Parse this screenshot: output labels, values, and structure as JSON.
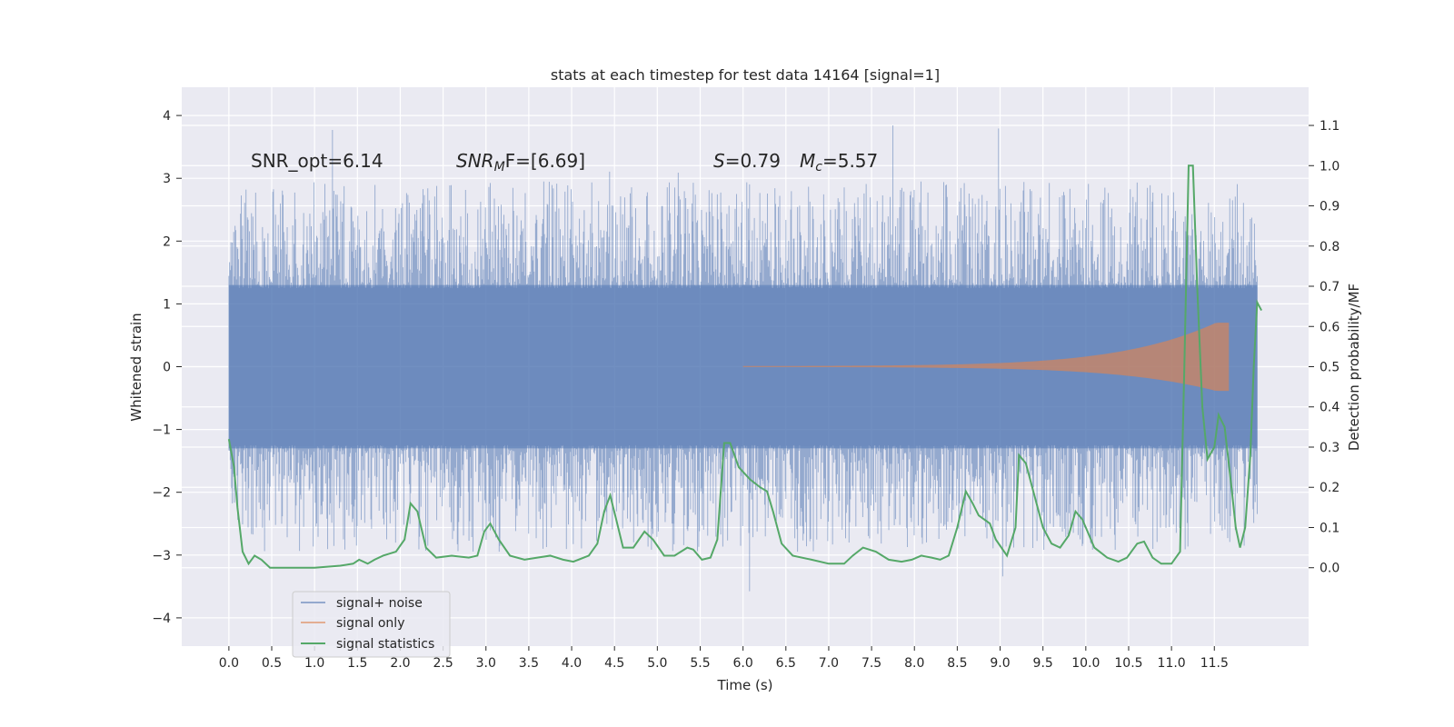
{
  "chart_data": {
    "type": "line",
    "title": "stats at each timestep for test data 14164 [signal=1]",
    "xlabel": "Time (s)",
    "ylabel": "Whitened strain",
    "y2label": "Detection probability/MF",
    "xlim": [
      -0.55,
      12.6
    ],
    "ylim": [
      -4.45,
      4.45
    ],
    "y2lim": [
      -0.195,
      1.195
    ],
    "xticks": [
      0.0,
      0.5,
      1.0,
      1.5,
      2.0,
      2.5,
      3.0,
      3.5,
      4.0,
      4.5,
      5.0,
      5.5,
      6.0,
      6.5,
      7.0,
      7.5,
      8.0,
      8.5,
      9.0,
      9.5,
      10.0,
      10.5,
      11.0,
      11.5
    ],
    "xtick_labels": [
      "0.0",
      "0.5",
      "1.0",
      "1.5",
      "2.0",
      "2.5",
      "3.0",
      "3.5",
      "4.0",
      "4.5",
      "5.0",
      "5.5",
      "6.0",
      "6.5",
      "7.0",
      "7.5",
      "8.0",
      "8.5",
      "9.0",
      "9.5",
      "10.0",
      "10.5",
      "11.0",
      "11.5"
    ],
    "yticks": [
      -4,
      -3,
      -2,
      -1,
      0,
      1,
      2,
      3,
      4
    ],
    "ytick_labels": [
      "−4",
      "−3",
      "−2",
      "−1",
      "0",
      "1",
      "2",
      "3",
      "4"
    ],
    "y2ticks": [
      0.0,
      0.1,
      0.2,
      0.3,
      0.4,
      0.5,
      0.6,
      0.7,
      0.8,
      0.9,
      1.0,
      1.1
    ],
    "y2tick_labels": [
      "0.0",
      "0.1",
      "0.2",
      "0.3",
      "0.4",
      "0.5",
      "0.6",
      "0.7",
      "0.8",
      "0.9",
      "1.0",
      "1.1"
    ],
    "grid": true,
    "legend_position": "lower-left",
    "annotations": {
      "snr_opt": "SNR_opt=6.14",
      "snr_mf_base": "SNR",
      "snr_mf_sub": "M",
      "snr_mf_tail": "F=[6.69]",
      "s_sym": "S",
      "s_val": "=0.79",
      "mc_sym": "M",
      "mc_sub": "c",
      "mc_val": "=5.57"
    },
    "series": [
      {
        "name": "signal+ noise",
        "color": "#4c72b0",
        "time_range": [
          0.0,
          12.0
        ],
        "band_abs": 1.3,
        "peak_max": 4.1,
        "peak_min": -4.05
      },
      {
        "name": "signal only",
        "color": "#dd8452",
        "time_range": [
          6.0,
          11.67
        ],
        "amplitude_start": 0.01,
        "amplitude_end": 0.7
      },
      {
        "name": "signal statistics",
        "color": "#55a868",
        "axis": "right",
        "points": [
          [
            0.0,
            0.32
          ],
          [
            0.06,
            0.25
          ],
          [
            0.1,
            0.15
          ],
          [
            0.16,
            0.04
          ],
          [
            0.23,
            0.01
          ],
          [
            0.3,
            0.03
          ],
          [
            0.38,
            0.02
          ],
          [
            0.48,
            0.0
          ],
          [
            0.7,
            0.0
          ],
          [
            1.0,
            0.0
          ],
          [
            1.3,
            0.005
          ],
          [
            1.45,
            0.01
          ],
          [
            1.52,
            0.02
          ],
          [
            1.62,
            0.01
          ],
          [
            1.7,
            0.02
          ],
          [
            1.8,
            0.03
          ],
          [
            1.95,
            0.04
          ],
          [
            2.05,
            0.07
          ],
          [
            2.12,
            0.16
          ],
          [
            2.2,
            0.14
          ],
          [
            2.3,
            0.05
          ],
          [
            2.42,
            0.025
          ],
          [
            2.6,
            0.03
          ],
          [
            2.8,
            0.025
          ],
          [
            2.9,
            0.03
          ],
          [
            2.98,
            0.09
          ],
          [
            3.05,
            0.11
          ],
          [
            3.15,
            0.07
          ],
          [
            3.28,
            0.03
          ],
          [
            3.45,
            0.02
          ],
          [
            3.6,
            0.025
          ],
          [
            3.75,
            0.03
          ],
          [
            3.9,
            0.02
          ],
          [
            4.02,
            0.015
          ],
          [
            4.2,
            0.03
          ],
          [
            4.3,
            0.06
          ],
          [
            4.38,
            0.14
          ],
          [
            4.45,
            0.18
          ],
          [
            4.52,
            0.12
          ],
          [
            4.6,
            0.05
          ],
          [
            4.72,
            0.05
          ],
          [
            4.85,
            0.09
          ],
          [
            4.95,
            0.07
          ],
          [
            5.08,
            0.03
          ],
          [
            5.2,
            0.03
          ],
          [
            5.35,
            0.05
          ],
          [
            5.42,
            0.045
          ],
          [
            5.52,
            0.02
          ],
          [
            5.62,
            0.025
          ],
          [
            5.7,
            0.07
          ],
          [
            5.78,
            0.31
          ],
          [
            5.85,
            0.31
          ],
          [
            5.95,
            0.25
          ],
          [
            6.08,
            0.22
          ],
          [
            6.2,
            0.2
          ],
          [
            6.28,
            0.19
          ],
          [
            6.35,
            0.14
          ],
          [
            6.45,
            0.06
          ],
          [
            6.58,
            0.03
          ],
          [
            6.8,
            0.02
          ],
          [
            7.0,
            0.01
          ],
          [
            7.18,
            0.01
          ],
          [
            7.28,
            0.03
          ],
          [
            7.4,
            0.05
          ],
          [
            7.55,
            0.04
          ],
          [
            7.7,
            0.02
          ],
          [
            7.85,
            0.015
          ],
          [
            7.97,
            0.02
          ],
          [
            8.08,
            0.03
          ],
          [
            8.2,
            0.025
          ],
          [
            8.3,
            0.02
          ],
          [
            8.4,
            0.03
          ],
          [
            8.5,
            0.1
          ],
          [
            8.6,
            0.19
          ],
          [
            8.68,
            0.16
          ],
          [
            8.75,
            0.13
          ],
          [
            8.88,
            0.11
          ],
          [
            8.95,
            0.07
          ],
          [
            9.08,
            0.03
          ],
          [
            9.18,
            0.1
          ],
          [
            9.22,
            0.28
          ],
          [
            9.3,
            0.26
          ],
          [
            9.4,
            0.18
          ],
          [
            9.5,
            0.1
          ],
          [
            9.6,
            0.06
          ],
          [
            9.7,
            0.05
          ],
          [
            9.8,
            0.08
          ],
          [
            9.88,
            0.14
          ],
          [
            9.96,
            0.12
          ],
          [
            10.1,
            0.05
          ],
          [
            10.25,
            0.025
          ],
          [
            10.38,
            0.015
          ],
          [
            10.48,
            0.025
          ],
          [
            10.6,
            0.06
          ],
          [
            10.68,
            0.065
          ],
          [
            10.78,
            0.025
          ],
          [
            10.88,
            0.01
          ],
          [
            11.0,
            0.01
          ],
          [
            11.1,
            0.04
          ],
          [
            11.15,
            0.5
          ],
          [
            11.2,
            1.0
          ],
          [
            11.25,
            1.0
          ],
          [
            11.3,
            0.7
          ],
          [
            11.36,
            0.4
          ],
          [
            11.42,
            0.27
          ],
          [
            11.5,
            0.3
          ],
          [
            11.55,
            0.38
          ],
          [
            11.62,
            0.35
          ],
          [
            11.7,
            0.2
          ],
          [
            11.75,
            0.1
          ],
          [
            11.8,
            0.05
          ],
          [
            11.86,
            0.1
          ],
          [
            11.92,
            0.28
          ],
          [
            11.96,
            0.5
          ],
          [
            12.0,
            0.66
          ],
          [
            12.05,
            0.64
          ]
        ]
      }
    ]
  }
}
